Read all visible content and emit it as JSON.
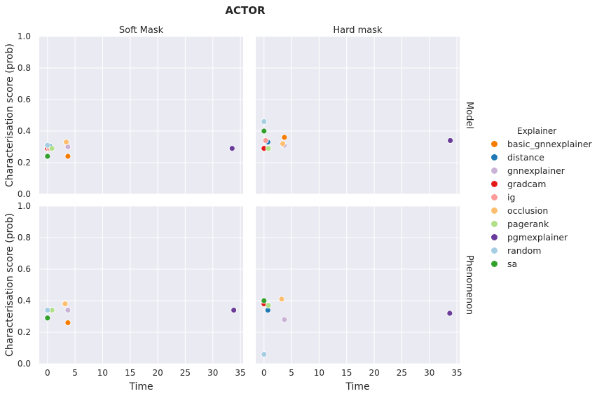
{
  "chart_data": {
    "type": "scatter",
    "title": "ACTOR",
    "column_titles": [
      "Soft Mask",
      "Hard mask"
    ],
    "row_titles": [
      "Model",
      "Phenomenon"
    ],
    "xlabel": "Time",
    "ylabel": "Characterisation score (prob)",
    "xlim": [
      -1.5,
      35.5
    ],
    "ylim": [
      0,
      1.0
    ],
    "xticks": [
      "0",
      "5",
      "10",
      "15",
      "20",
      "25",
      "30",
      "35"
    ],
    "yticks": [
      "0.0",
      "0.2",
      "0.4",
      "0.6",
      "0.8",
      "1.0"
    ],
    "grid": true,
    "legend_title": "Explainer",
    "legend_position": "right",
    "series": [
      {
        "name": "basic_gnnexplainer",
        "color": "#f57c00",
        "points": {
          "soft_model": [
            3.7,
            0.24
          ],
          "hard_model": [
            3.7,
            0.36
          ],
          "soft_phen": [
            3.7,
            0.26
          ],
          "hard_phen": [
            null,
            null
          ]
        }
      },
      {
        "name": "distance",
        "color": "#1f78b4",
        "points": {
          "soft_model": [
            0.5,
            0.3
          ],
          "hard_model": [
            0.7,
            0.33
          ],
          "soft_phen": [
            0.6,
            0.34
          ],
          "hard_phen": [
            0.7,
            0.34
          ]
        }
      },
      {
        "name": "gnnexplainer",
        "color": "#cab2d6",
        "points": {
          "soft_model": [
            3.7,
            0.3
          ],
          "hard_model": [
            3.7,
            0.31
          ],
          "soft_phen": [
            3.7,
            0.34
          ],
          "hard_phen": [
            3.7,
            0.28
          ]
        }
      },
      {
        "name": "gradcam",
        "color": "#e31a1c",
        "points": {
          "soft_model": [
            0.0,
            0.29
          ],
          "hard_model": [
            0.0,
            0.29
          ],
          "soft_phen": [
            null,
            null
          ],
          "hard_phen": [
            0.0,
            0.38
          ]
        }
      },
      {
        "name": "ig",
        "color": "#fb9a99",
        "points": {
          "soft_model": [
            0.3,
            0.29
          ],
          "hard_model": [
            0.3,
            0.34
          ],
          "soft_phen": [
            null,
            null
          ],
          "hard_phen": [
            null,
            null
          ]
        }
      },
      {
        "name": "occlusion",
        "color": "#fdbf6f",
        "points": {
          "soft_model": [
            3.4,
            0.33
          ],
          "hard_model": [
            3.4,
            0.32
          ],
          "soft_phen": [
            3.2,
            0.38
          ],
          "hard_phen": [
            3.2,
            0.41
          ]
        }
      },
      {
        "name": "pagerank",
        "color": "#b2df8a",
        "points": {
          "soft_model": [
            0.8,
            0.29
          ],
          "hard_model": [
            0.8,
            0.29
          ],
          "soft_phen": [
            0.8,
            0.34
          ],
          "hard_phen": [
            0.8,
            0.37
          ]
        }
      },
      {
        "name": "pgmexplainer",
        "color": "#6a3d9a",
        "points": {
          "soft_model": [
            33.5,
            0.29
          ],
          "hard_model": [
            33.8,
            0.34
          ],
          "soft_phen": [
            33.8,
            0.34
          ],
          "hard_phen": [
            33.7,
            0.32
          ]
        }
      },
      {
        "name": "random",
        "color": "#a6cee3",
        "points": {
          "soft_model": [
            0.0,
            0.31
          ],
          "hard_model": [
            0.0,
            0.46
          ],
          "soft_phen": [
            0.0,
            0.34
          ],
          "hard_phen": [
            0.0,
            0.06
          ]
        }
      },
      {
        "name": "sa",
        "color": "#33a02c",
        "points": {
          "soft_model": [
            0.0,
            0.24
          ],
          "hard_model": [
            0.0,
            0.4
          ],
          "soft_phen": [
            0.0,
            0.29
          ],
          "hard_phen": [
            0.0,
            0.4
          ]
        }
      }
    ]
  }
}
